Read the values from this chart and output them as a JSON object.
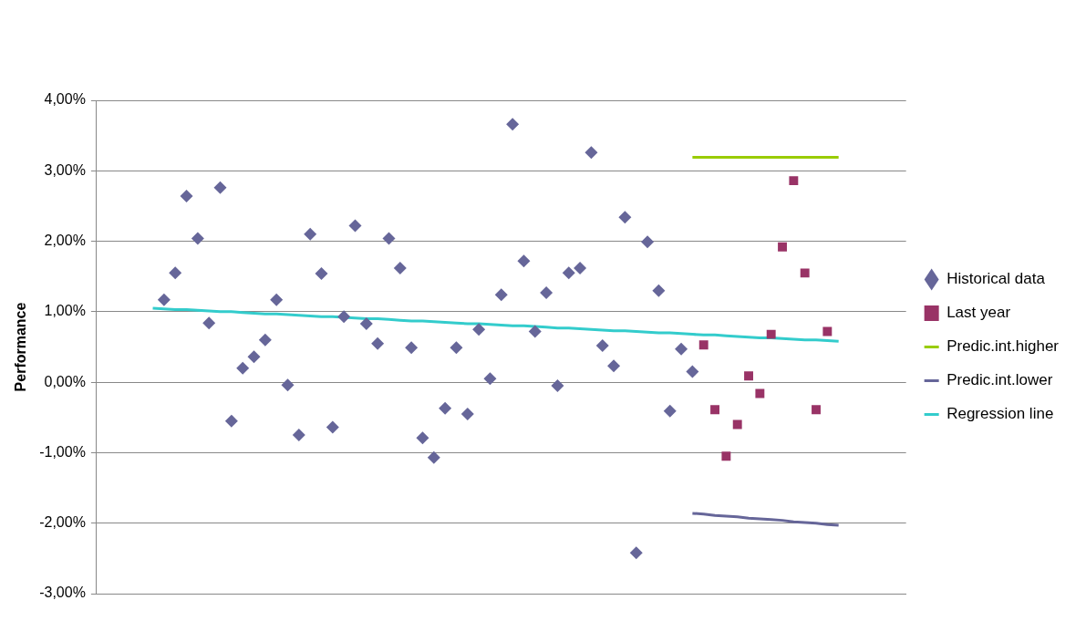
{
  "chart_data": {
    "type": "scatter",
    "ylabel": "Performance",
    "categories": [
      null,
      null,
      null,
      null,
      null,
      null,
      null,
      null,
      null,
      null,
      null,
      null,
      null,
      null,
      null,
      null,
      null,
      null,
      null,
      null,
      null,
      null,
      null,
      null,
      null,
      null,
      null,
      null,
      null,
      null,
      null,
      null,
      null,
      null,
      null,
      null,
      null,
      null,
      null,
      null,
      null,
      null,
      null,
      null,
      null,
      null,
      null,
      null,
      null,
      null,
      null,
      null,
      null,
      null,
      null,
      null,
      null,
      null,
      null,
      null,
      null,
      null,
      null,
      null,
      null,
      null,
      null,
      null,
      null,
      null,
      null,
      null,
      null
    ],
    "ylim": [
      -3,
      4
    ],
    "yticks": [
      {
        "value": -3,
        "label": "-3,00%"
      },
      {
        "value": -2,
        "label": "-2,00%"
      },
      {
        "value": -1,
        "label": "-1,00%"
      },
      {
        "value": 0,
        "label": "0,00%"
      },
      {
        "value": 1,
        "label": "1,00%"
      },
      {
        "value": 2,
        "label": "2,00%"
      },
      {
        "value": 3,
        "label": "3,00%"
      },
      {
        "value": 4,
        "label": "4,00%"
      }
    ],
    "tick_labels": "y",
    "grid": "y",
    "legend": "right",
    "series": [
      {
        "name": "Historical data",
        "marker": "diamond",
        "color": "#666699",
        "values": [
          null,
          null,
          null,
          null,
          null,
          null,
          1.17,
          1.55,
          2.64,
          2.04,
          0.84,
          2.76,
          -0.55,
          0.2,
          0.36,
          0.6,
          1.17,
          -0.04,
          -0.75,
          2.1,
          1.54,
          -0.64,
          0.93,
          2.22,
          0.83,
          0.55,
          2.04,
          1.62,
          0.49,
          -0.79,
          -1.07,
          -0.37,
          0.49,
          -0.45,
          0.75,
          0.05,
          1.24,
          3.66,
          1.72,
          0.72,
          1.27,
          -0.05,
          1.55,
          1.62,
          3.26,
          0.52,
          0.23,
          2.34,
          -2.42,
          1.99,
          1.3,
          -0.41,
          0.47,
          0.15,
          null,
          null,
          null,
          null,
          null,
          null,
          null,
          null,
          null,
          null,
          null,
          null,
          null,
          null,
          null,
          null,
          null,
          null,
          null
        ]
      },
      {
        "name": "Last year",
        "marker": "square",
        "color": "#993366",
        "values": [
          null,
          null,
          null,
          null,
          null,
          null,
          null,
          null,
          null,
          null,
          null,
          null,
          null,
          null,
          null,
          null,
          null,
          null,
          null,
          null,
          null,
          null,
          null,
          null,
          null,
          null,
          null,
          null,
          null,
          null,
          null,
          null,
          null,
          null,
          null,
          null,
          null,
          null,
          null,
          null,
          null,
          null,
          null,
          null,
          null,
          null,
          null,
          null,
          null,
          null,
          null,
          null,
          null,
          null,
          0.53,
          -0.39,
          -1.05,
          -0.6,
          0.09,
          -0.16,
          0.68,
          1.92,
          2.86,
          1.55,
          -0.39,
          0.72,
          null,
          null,
          null,
          null,
          null,
          null,
          null
        ]
      },
      {
        "name": "Predic.int.higher",
        "type": "line",
        "marker": "none",
        "color": "#99cc00",
        "values": [
          null,
          null,
          null,
          null,
          null,
          null,
          null,
          null,
          null,
          null,
          null,
          null,
          null,
          null,
          null,
          null,
          null,
          null,
          null,
          null,
          null,
          null,
          null,
          null,
          null,
          null,
          null,
          null,
          null,
          null,
          null,
          null,
          null,
          null,
          null,
          null,
          null,
          null,
          null,
          null,
          null,
          null,
          null,
          null,
          null,
          null,
          null,
          null,
          null,
          null,
          null,
          null,
          null,
          3.19,
          3.19,
          3.19,
          3.19,
          3.19,
          3.19,
          3.19,
          3.19,
          3.19,
          3.19,
          3.19,
          3.19,
          3.19,
          3.19,
          null,
          null,
          null,
          null,
          null,
          null
        ]
      },
      {
        "name": "Predic.int.lower",
        "type": "line",
        "marker": "none",
        "color": "#666699",
        "values": [
          null,
          null,
          null,
          null,
          null,
          null,
          null,
          null,
          null,
          null,
          null,
          null,
          null,
          null,
          null,
          null,
          null,
          null,
          null,
          null,
          null,
          null,
          null,
          null,
          null,
          null,
          null,
          null,
          null,
          null,
          null,
          null,
          null,
          null,
          null,
          null,
          null,
          null,
          null,
          null,
          null,
          null,
          null,
          null,
          null,
          null,
          null,
          null,
          null,
          null,
          null,
          null,
          null,
          -1.86,
          -1.87,
          -1.89,
          -1.9,
          -1.91,
          -1.93,
          -1.94,
          -1.95,
          -1.96,
          -1.98,
          -1.99,
          -2.0,
          -2.02,
          -2.03,
          null,
          null,
          null,
          null,
          null,
          null
        ]
      },
      {
        "name": "Regression line",
        "type": "line",
        "marker": "none",
        "color": "#33cccc",
        "values": [
          null,
          null,
          null,
          null,
          null,
          1.05,
          1.04,
          1.03,
          1.03,
          1.02,
          1.01,
          1.0,
          1.0,
          0.99,
          0.98,
          0.97,
          0.97,
          0.96,
          0.95,
          0.94,
          0.93,
          0.93,
          0.92,
          0.91,
          0.9,
          0.9,
          0.89,
          0.88,
          0.87,
          0.87,
          0.86,
          0.85,
          0.84,
          0.83,
          0.83,
          0.82,
          0.81,
          0.8,
          0.8,
          0.79,
          0.78,
          0.77,
          0.77,
          0.76,
          0.75,
          0.74,
          0.73,
          0.73,
          0.72,
          0.71,
          0.7,
          0.7,
          0.69,
          0.68,
          0.67,
          0.67,
          0.66,
          0.65,
          0.64,
          0.63,
          0.63,
          0.62,
          0.61,
          0.6,
          0.6,
          0.59,
          0.58,
          null,
          null,
          null,
          null,
          null,
          null
        ]
      }
    ]
  }
}
